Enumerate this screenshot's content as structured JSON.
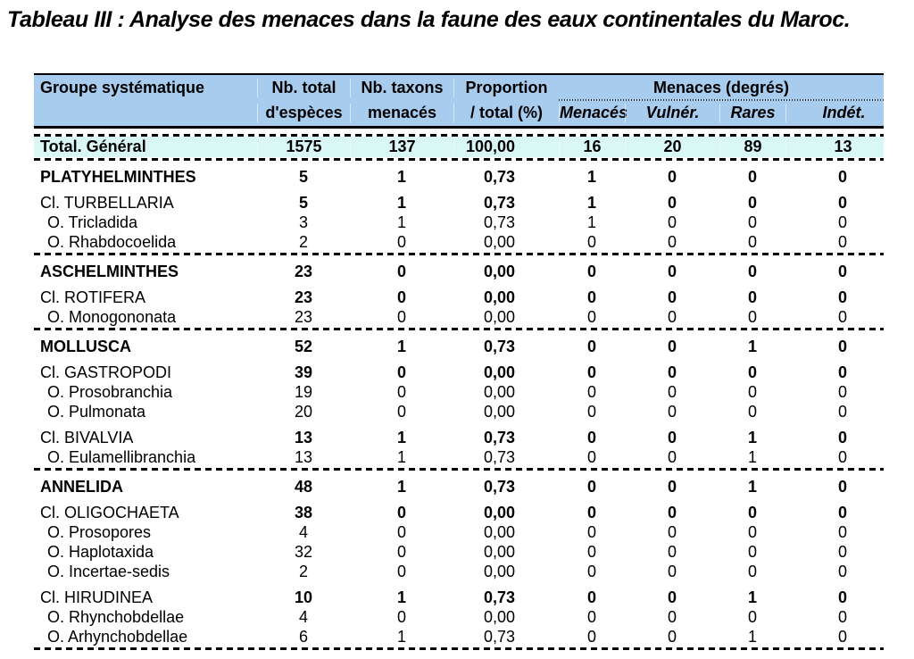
{
  "title": "Tableau III : Analyse des menaces dans la faune des eaux continentales du Maroc.",
  "colors": {
    "header_bg": "#a8ccee",
    "total_row_bg": "#d9f7f4",
    "text": "#000000"
  },
  "table": {
    "header": {
      "group_col": "Groupe systématique",
      "col2_line1": "Nb. total",
      "col2_line2": "d'espèces",
      "col3_line1": "Nb. taxons",
      "col3_line2": "menacés",
      "col4_line1": "Proportion",
      "col4_line2": "/ total (%)",
      "menaces_group_label": "Menaces  (degrés)",
      "menaces_cols": [
        "Menacés",
        "Vulnér.",
        "Rares",
        "Indét."
      ]
    },
    "total_row": {
      "label": "Total. Général",
      "values": [
        "1575",
        "137",
        "100,00",
        "16",
        "20",
        "89",
        "13"
      ]
    },
    "rows": [
      {
        "type": "row",
        "cls": "phylum",
        "label": "PLATYHELMINTHES",
        "values": [
          "5",
          "1",
          "0,73",
          "1",
          "0",
          "0",
          "0"
        ]
      },
      {
        "type": "row",
        "cls": "class",
        "label": "Cl. TURBELLARIA",
        "values": [
          "5",
          "1",
          "0,73",
          "1",
          "0",
          "0",
          "0"
        ]
      },
      {
        "type": "row",
        "cls": "order",
        "label": "O. Tricladida",
        "values": [
          "3",
          "1",
          "0,73",
          "1",
          "0",
          "0",
          "0"
        ]
      },
      {
        "type": "row",
        "cls": "order",
        "label": "O. Rhabdocoelida",
        "values": [
          "2",
          "0",
          "0,00",
          "0",
          "0",
          "0",
          "0"
        ]
      },
      {
        "type": "sep"
      },
      {
        "type": "row",
        "cls": "phylum",
        "label": "ASCHELMINTHES",
        "values": [
          "23",
          "0",
          "0,00",
          "0",
          "0",
          "0",
          "0"
        ]
      },
      {
        "type": "row",
        "cls": "class",
        "label": "Cl. ROTIFERA",
        "values": [
          "23",
          "0",
          "0,00",
          "0",
          "0",
          "0",
          "0"
        ]
      },
      {
        "type": "row",
        "cls": "order",
        "label": "O. Monogononata",
        "values": [
          "23",
          "0",
          "0,00",
          "0",
          "0",
          "0",
          "0"
        ]
      },
      {
        "type": "sep"
      },
      {
        "type": "row",
        "cls": "phylum",
        "label": "MOLLUSCA",
        "values": [
          "52",
          "1",
          "0,73",
          "0",
          "0",
          "1",
          "0"
        ]
      },
      {
        "type": "row",
        "cls": "class",
        "label": "Cl. GASTROPODI",
        "values": [
          "39",
          "0",
          "0,00",
          "0",
          "0",
          "0",
          "0"
        ]
      },
      {
        "type": "row",
        "cls": "order",
        "label": "O. Prosobranchia",
        "values": [
          "19",
          "0",
          "0,00",
          "0",
          "0",
          "0",
          "0"
        ]
      },
      {
        "type": "row",
        "cls": "order",
        "label": "O. Pulmonata",
        "values": [
          "20",
          "0",
          "0,00",
          "0",
          "0",
          "0",
          "0"
        ]
      },
      {
        "type": "row",
        "cls": "class",
        "label": "Cl. BIVALVIA",
        "values": [
          "13",
          "1",
          "0,73",
          "0",
          "0",
          "1",
          "0"
        ]
      },
      {
        "type": "row",
        "cls": "order",
        "label": "O. Eulamellibranchia",
        "values": [
          "13",
          "1",
          "0,73",
          "0",
          "0",
          "1",
          "0"
        ]
      },
      {
        "type": "sep"
      },
      {
        "type": "row",
        "cls": "phylum",
        "label": "ANNELIDA",
        "values": [
          "48",
          "1",
          "0,73",
          "0",
          "0",
          "1",
          "0"
        ]
      },
      {
        "type": "row",
        "cls": "class",
        "label": "Cl. OLIGOCHAETA",
        "values": [
          "38",
          "0",
          "0,00",
          "0",
          "0",
          "0",
          "0"
        ]
      },
      {
        "type": "row",
        "cls": "order",
        "label": "O. Prosopores",
        "values": [
          "4",
          "0",
          "0,00",
          "0",
          "0",
          "0",
          "0"
        ]
      },
      {
        "type": "row",
        "cls": "order",
        "label": "O. Haplotaxida",
        "values": [
          "32",
          "0",
          "0,00",
          "0",
          "0",
          "0",
          "0"
        ]
      },
      {
        "type": "row",
        "cls": "order",
        "label": "O. Incertae-sedis",
        "values": [
          "2",
          "0",
          "0,00",
          "0",
          "0",
          "0",
          "0"
        ]
      },
      {
        "type": "row",
        "cls": "class",
        "label": "Cl. HIRUDINEA",
        "values": [
          "10",
          "1",
          "0,73",
          "0",
          "0",
          "1",
          "0"
        ]
      },
      {
        "type": "row",
        "cls": "order",
        "label": "O. Rhynchobdellae",
        "values": [
          "4",
          "0",
          "0,00",
          "0",
          "0",
          "0",
          "0"
        ]
      },
      {
        "type": "row",
        "cls": "order",
        "label": "O. Arhynchobdellae",
        "values": [
          "6",
          "1",
          "0,73",
          "0",
          "0",
          "1",
          "0"
        ]
      },
      {
        "type": "sep"
      }
    ]
  }
}
